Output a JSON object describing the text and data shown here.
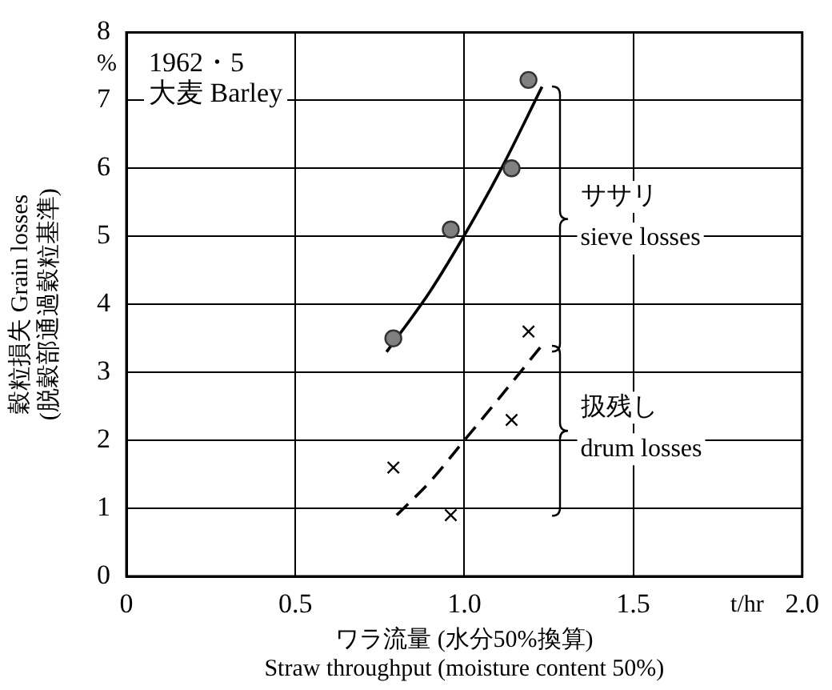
{
  "chart_data": {
    "type": "scatter",
    "xlabel": "ワラ流量 (水分50%換算)\nStraw throughput (moisture content 50%)",
    "ylabel": "穀粒損失 Grain losses\n(脱穀部通過穀粒基準)",
    "annotations": [
      "1962・5",
      "大麦 Barley",
      "%",
      "t/hr"
    ],
    "xlim": [
      0,
      2.0
    ],
    "xticks": [
      0,
      {
        "value": 0.5,
        "label": "0.5"
      },
      {
        "value": 1,
        "label": "1.0"
      },
      {
        "value": 1.5,
        "label": "1.5"
      },
      {
        "value": 2,
        "label": "2.0"
      }
    ],
    "ylim": [
      0,
      8
    ],
    "yticks": [
      0,
      1,
      2,
      3,
      4,
      5,
      6,
      7,
      8
    ],
    "grid": true,
    "legend": false,
    "series": [
      {
        "name": "ササリ\nsieve losses",
        "marker": "circle",
        "color": "#808080",
        "x": [
          0.79,
          0.96,
          1.14,
          1.19
        ],
        "values": [
          3.5,
          5.1,
          6.0,
          7.3
        ]
      },
      {
        "type": "line",
        "marker": "none",
        "line_style": "solid",
        "color": "#000000",
        "x": [
          0.77,
          0.9,
          1.01,
          1.11,
          1.23
        ],
        "values": [
          3.3,
          4.2,
          5.1,
          6.0,
          7.2
        ]
      },
      {
        "name": "扱残し\ndrum losses",
        "marker": "cross",
        "color": "#000000",
        "x": [
          0.79,
          0.96,
          1.14,
          1.19
        ],
        "values": [
          1.6,
          0.9,
          2.3,
          3.6
        ]
      },
      {
        "type": "line",
        "marker": "none",
        "line_style": "dashed",
        "color": "#000000",
        "x": [
          0.8,
          0.9,
          1.0,
          1.1,
          1.23
        ],
        "values": [
          0.9,
          1.4,
          2.0,
          2.6,
          3.4
        ]
      }
    ]
  }
}
